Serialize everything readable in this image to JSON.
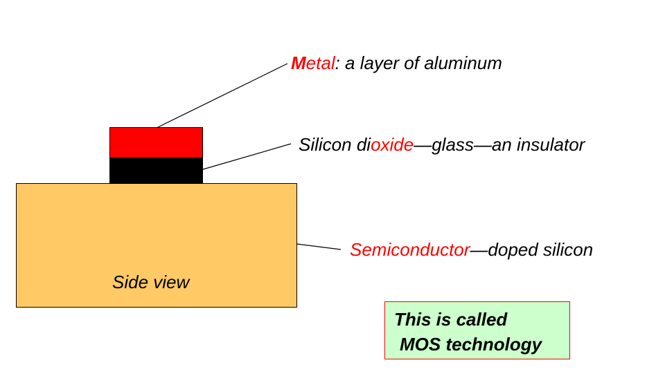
{
  "labels": {
    "metal": {
      "first_letter": "M",
      "rest_red": "etal",
      "suffix": ": a layer of aluminum"
    },
    "oxide": {
      "prefix": "Silicon di",
      "red": "oxide",
      "suffix": "—glass—an insulator"
    },
    "semiconductor": {
      "red": "Semiconductor",
      "suffix": "—doped silicon"
    },
    "side_view": "Side view"
  },
  "callout": {
    "line1": "This is called",
    "line2": "MOS technology"
  },
  "colors": {
    "metal_layer": "#FF0000",
    "oxide_layer": "#000000",
    "substrate": "#FFCA66",
    "highlight_text": "#FF0000",
    "callout_background": "#CCFFCC",
    "callout_border": "#FF0000"
  }
}
